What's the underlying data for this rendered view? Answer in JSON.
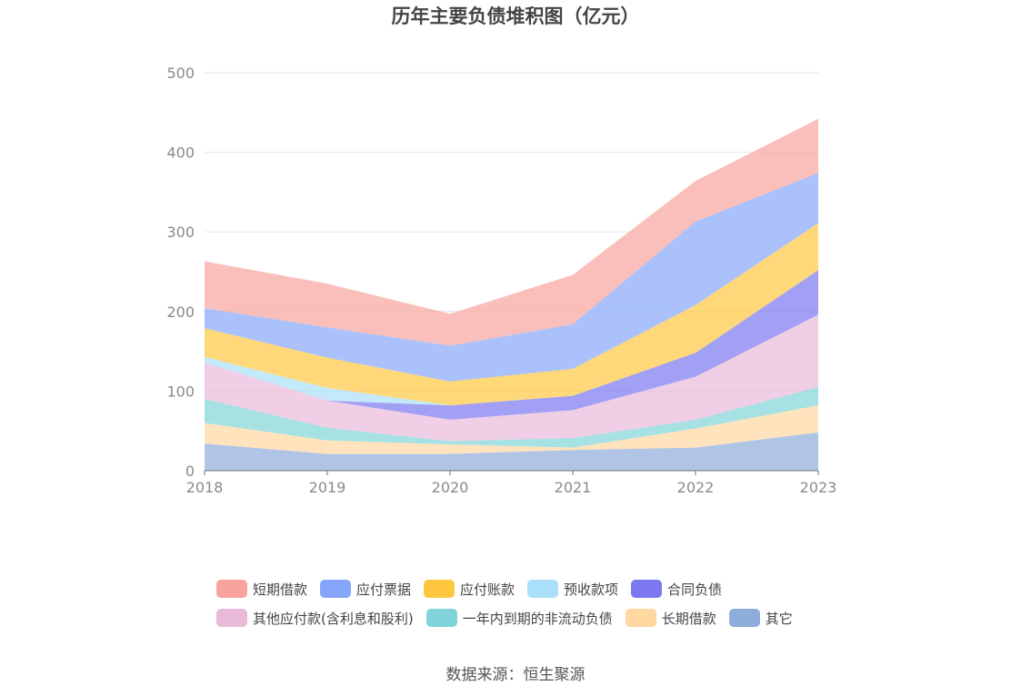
{
  "chart_data": {
    "type": "area",
    "title": "历年主要负债堆积图（亿元）",
    "x": [
      "2018",
      "2019",
      "2020",
      "2021",
      "2022",
      "2023"
    ],
    "ylim": [
      0,
      500
    ],
    "yticks": [
      "0",
      "100",
      "200",
      "300",
      "400",
      "500"
    ],
    "stacked": true,
    "grid": true,
    "legend_position": "bottom",
    "series": [
      {
        "name": "其它",
        "color": "#8eaddb",
        "values": [
          34,
          21,
          21,
          26,
          29,
          48
        ]
      },
      {
        "name": "长期借款",
        "color": "#ffd7a0",
        "values": [
          26,
          17,
          12,
          3,
          24,
          34
        ]
      },
      {
        "name": "一年内到期的非流动负债",
        "color": "#80d4d9",
        "values": [
          30,
          16,
          4,
          12,
          11,
          23
        ]
      },
      {
        "name": "其他应付款(含利息和股利)",
        "color": "#e9b9da",
        "values": [
          46,
          34,
          27,
          35,
          54,
          91
        ]
      },
      {
        "name": "合同负债",
        "color": "#7b78f0",
        "values": [
          0,
          0,
          18,
          18,
          30,
          56
        ]
      },
      {
        "name": "预收款项",
        "color": "#a9dff8",
        "values": [
          7,
          16,
          0,
          0,
          0,
          0
        ]
      },
      {
        "name": "应付账款",
        "color": "#ffc740",
        "values": [
          36,
          38,
          30,
          34,
          60,
          59
        ]
      },
      {
        "name": "应付票据",
        "color": "#86a6fb",
        "values": [
          25,
          38,
          45,
          56,
          105,
          63
        ]
      },
      {
        "name": "短期借款",
        "color": "#f8a49d",
        "values": [
          59,
          55,
          40,
          62,
          51,
          68
        ]
      }
    ]
  },
  "legend": {
    "rows": [
      [
        {
          "label": "短期借款",
          "color": "#f8a49d"
        },
        {
          "label": "应付票据",
          "color": "#86a6fb"
        },
        {
          "label": "应付账款",
          "color": "#ffc740"
        },
        {
          "label": "预收款项",
          "color": "#a9dff8"
        },
        {
          "label": "合同负债",
          "color": "#7b78f0"
        }
      ],
      [
        {
          "label": "其他应付款(含利息和股利)",
          "color": "#e9b9da"
        },
        {
          "label": "一年内到期的非流动负债",
          "color": "#80d4d9"
        },
        {
          "label": "长期借款",
          "color": "#ffd7a0"
        },
        {
          "label": "其它",
          "color": "#8eaddb"
        }
      ]
    ]
  },
  "source": "数据来源：恒生聚源"
}
